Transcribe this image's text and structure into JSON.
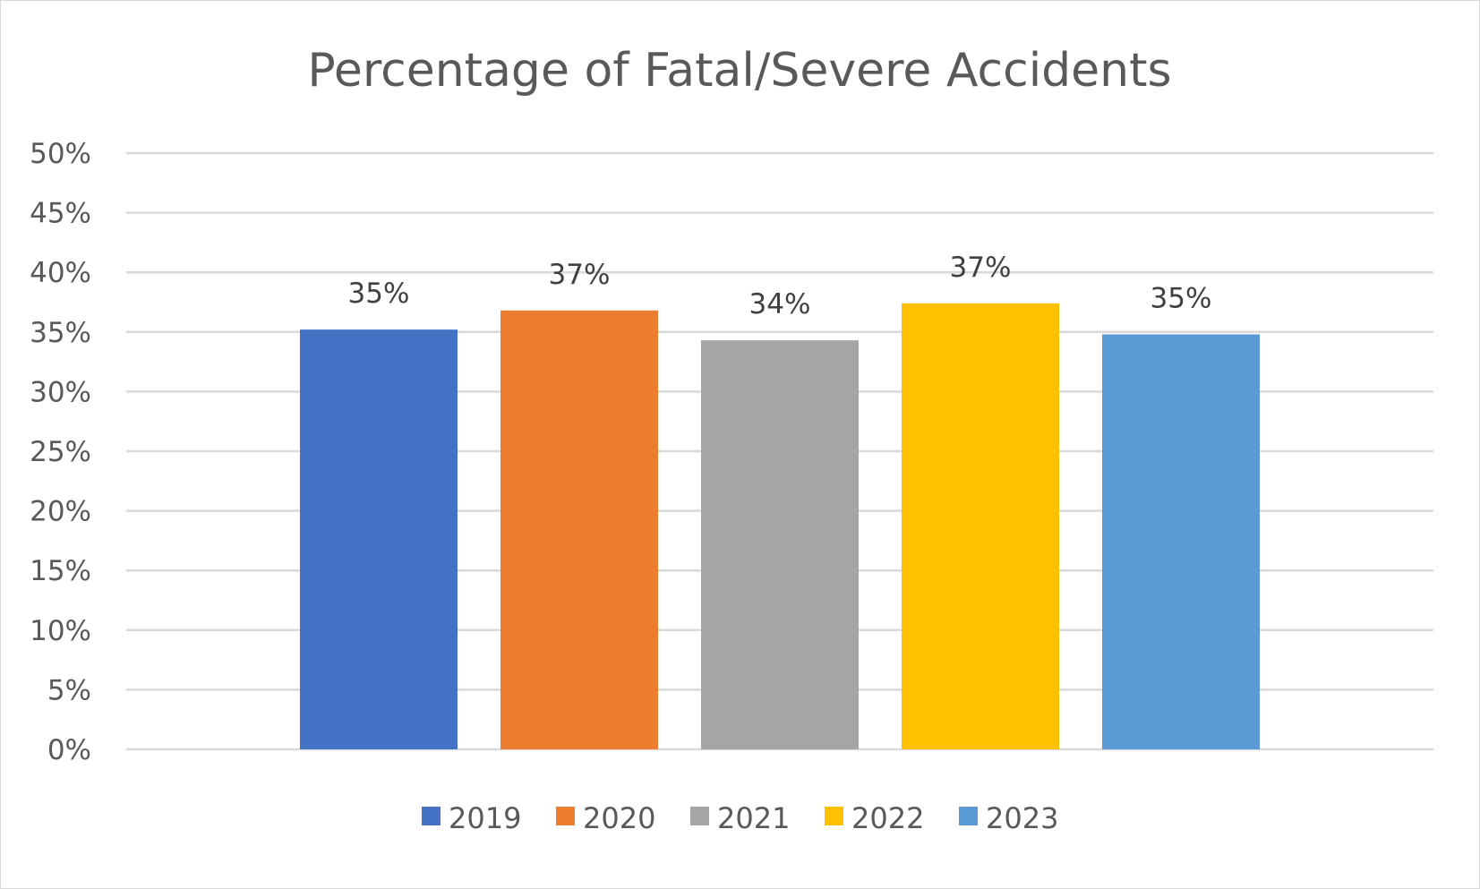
{
  "chart_data": {
    "type": "bar",
    "title": "Percentage of Fatal/Severe Accidents",
    "categories": [
      ""
    ],
    "series": [
      {
        "name": "2019",
        "value": 35.2,
        "label": "35%",
        "color": "#4472C4"
      },
      {
        "name": "2020",
        "value": 36.8,
        "label": "37%",
        "color": "#ED7D31"
      },
      {
        "name": "2021",
        "value": 34.3,
        "label": "34%",
        "color": "#A5A5A5"
      },
      {
        "name": "2022",
        "value": 37.4,
        "label": "37%",
        "color": "#FFC000"
      },
      {
        "name": "2023",
        "value": 34.8,
        "label": "35%",
        "color": "#5B9BD5"
      }
    ],
    "y_ticks": [
      "0%",
      "5%",
      "10%",
      "15%",
      "20%",
      "25%",
      "30%",
      "35%",
      "40%",
      "45%",
      "50%"
    ],
    "ylim": [
      0,
      50
    ],
    "ytick_step": 5,
    "xlabel": "",
    "ylabel": "",
    "grid": true,
    "legend_position": "bottom"
  }
}
